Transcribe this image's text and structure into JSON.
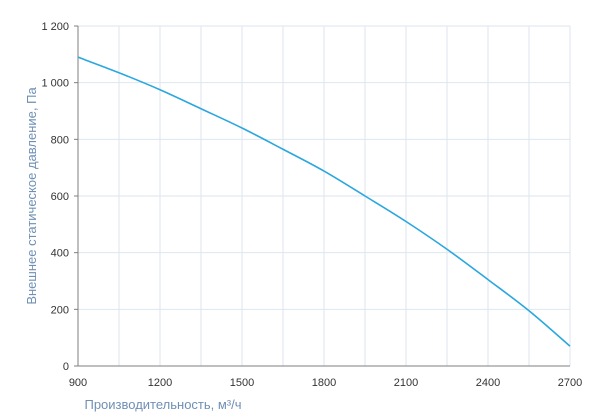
{
  "chart_data": {
    "type": "line",
    "xlabel": "Производительность, м³/ч",
    "ylabel": "Внешнее статическое давление, Па",
    "xlim": [
      900,
      2700
    ],
    "ylim": [
      0,
      1200
    ],
    "x_ticks": [
      900,
      1200,
      1500,
      1800,
      2100,
      2400,
      2700
    ],
    "y_ticks": [
      0,
      200,
      400,
      600,
      800,
      1000,
      1200
    ],
    "x_tick_labels": [
      "900",
      "1200",
      "1500",
      "1800",
      "2100",
      "2400",
      "2700"
    ],
    "y_tick_labels": [
      "0",
      "200",
      "400",
      "600",
      "800",
      "1 000",
      "1 200"
    ],
    "grid": true,
    "minor_x_step": 150,
    "series": [
      {
        "color": "#2aa7df",
        "x": [
          900,
          1050,
          1200,
          1350,
          1500,
          1650,
          1800,
          1950,
          2100,
          2250,
          2400,
          2550,
          2700
        ],
        "values": [
          1090,
          1035,
          975,
          908,
          840,
          765,
          688,
          600,
          510,
          412,
          305,
          195,
          70
        ]
      }
    ]
  }
}
